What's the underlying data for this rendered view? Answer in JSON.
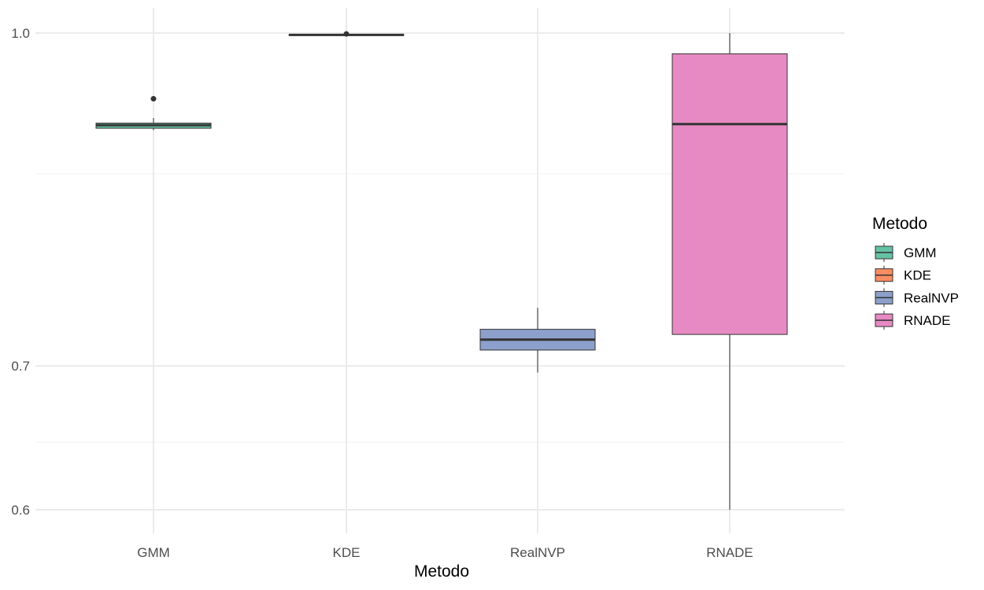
{
  "chart_data": {
    "type": "box",
    "title": "",
    "xlabel": "Metodo",
    "ylabel": "",
    "y_scale": "log",
    "ylim": [
      0.588,
      1.018
    ],
    "grid": true,
    "y_ticks": [
      {
        "value": 0.6,
        "label": "0.6"
      },
      {
        "value": 0.7,
        "label": "0.7"
      },
      {
        "value": 1.0,
        "label": "1.0"
      }
    ],
    "y_minor_gridlines": [
      0.645,
      0.86
    ],
    "categories": [
      "GMM",
      "KDE",
      "RealNVP",
      "RNADE"
    ],
    "boxes": [
      {
        "category": "GMM",
        "min": 0.901,
        "q1": 0.903,
        "median": 0.906,
        "q3": 0.908,
        "max": 0.913,
        "outliers": [
          0.932
        ],
        "color": "#66c2a5"
      },
      {
        "category": "KDE",
        "min": 0.998,
        "q1": 0.998,
        "median": 0.998,
        "q3": 0.998,
        "max": 0.999,
        "outliers": [
          0.999
        ],
        "color": "#fc8d62"
      },
      {
        "category": "RealNVP",
        "min": 0.695,
        "q1": 0.712,
        "median": 0.72,
        "q3": 0.728,
        "max": 0.745,
        "outliers": [],
        "color": "#8da0cb"
      },
      {
        "category": "RNADE",
        "min": 0.6,
        "q1": 0.724,
        "median": 0.907,
        "q3": 0.978,
        "max": 1.0,
        "outliers": [],
        "color": "#e78ac3"
      }
    ],
    "legend": {
      "title": "Metodo",
      "position": "right",
      "entries": [
        {
          "label": "GMM",
          "color": "#66c2a5"
        },
        {
          "label": "KDE",
          "color": "#fc8d62"
        },
        {
          "label": "RealNVP",
          "color": "#8da0cb"
        },
        {
          "label": "RNADE",
          "color": "#e78ac3"
        }
      ]
    }
  }
}
